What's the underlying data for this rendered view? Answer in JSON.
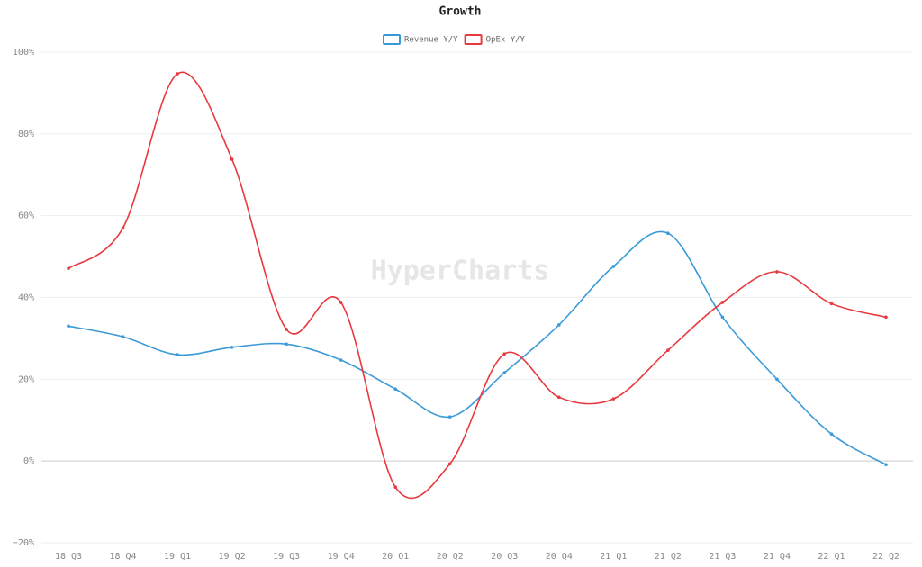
{
  "chart_data": {
    "type": "line",
    "title": "Growth",
    "watermark": "HyperCharts",
    "categories": [
      "18 Q3",
      "18 Q4",
      "19 Q1",
      "19 Q2",
      "19 Q3",
      "19 Q4",
      "20 Q1",
      "20 Q2",
      "20 Q3",
      "20 Q4",
      "21 Q1",
      "21 Q2",
      "21 Q3",
      "21 Q4",
      "22 Q1",
      "22 Q2"
    ],
    "series": [
      {
        "name": "Revenue Y/Y",
        "color": "#3a9ad9",
        "values": [
          33.0,
          30.4,
          26.0,
          27.8,
          28.6,
          24.7,
          17.6,
          10.8,
          21.6,
          33.3,
          47.6,
          55.7,
          35.2,
          20.0,
          6.6,
          -0.9
        ]
      },
      {
        "name": "OpEx Y/Y",
        "color": "#e8393f",
        "values": [
          47.1,
          57.0,
          94.7,
          73.8,
          32.2,
          38.8,
          -6.4,
          -0.7,
          26.2,
          15.6,
          15.2,
          27.1,
          38.8,
          46.3,
          38.5,
          35.2
        ]
      }
    ],
    "ylim": [
      -20,
      100
    ],
    "yticks": [
      {
        "value": -20,
        "label": "−20%"
      },
      {
        "value": 0,
        "label": "0%"
      },
      {
        "value": 20,
        "label": "20%"
      },
      {
        "value": 40,
        "label": "40%"
      },
      {
        "value": 60,
        "label": "60%"
      },
      {
        "value": 80,
        "label": "80%"
      },
      {
        "value": 100,
        "label": "100%"
      }
    ],
    "grid": true
  }
}
